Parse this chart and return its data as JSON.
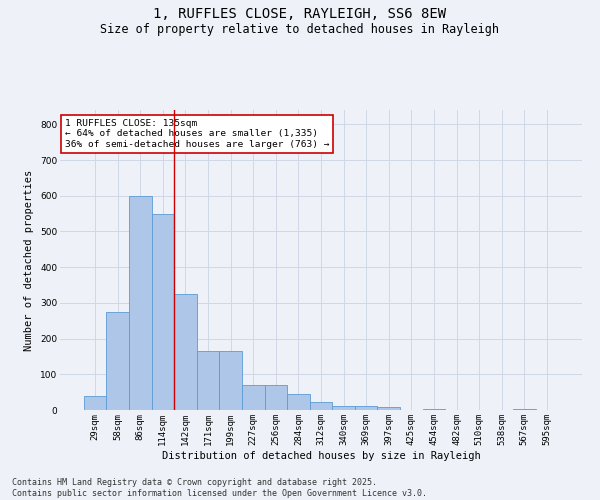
{
  "title": "1, RUFFLES CLOSE, RAYLEIGH, SS6 8EW",
  "subtitle": "Size of property relative to detached houses in Rayleigh",
  "xlabel": "Distribution of detached houses by size in Rayleigh",
  "ylabel": "Number of detached properties",
  "categories": [
    "29sqm",
    "58sqm",
    "86sqm",
    "114sqm",
    "142sqm",
    "171sqm",
    "199sqm",
    "227sqm",
    "256sqm",
    "284sqm",
    "312sqm",
    "340sqm",
    "369sqm",
    "397sqm",
    "425sqm",
    "454sqm",
    "482sqm",
    "510sqm",
    "538sqm",
    "567sqm",
    "595sqm"
  ],
  "values": [
    38,
    275,
    600,
    550,
    325,
    165,
    165,
    70,
    70,
    45,
    22,
    12,
    10,
    8,
    0,
    3,
    0,
    0,
    0,
    4,
    0
  ],
  "bar_color": "#aec6e8",
  "bar_edge_color": "#5b9bd5",
  "grid_color": "#d0d8e8",
  "background_color": "#eef2f8",
  "vline_color": "#cc0000",
  "vline_pos": 3.5,
  "annotation_title": "1 RUFFLES CLOSE: 135sqm",
  "annotation_line1": "← 64% of detached houses are smaller (1,335)",
  "annotation_line2": "36% of semi-detached houses are larger (763) →",
  "annotation_box_color": "#cc0000",
  "annotation_box_fill": "#ffffff",
  "footer_line1": "Contains HM Land Registry data © Crown copyright and database right 2025.",
  "footer_line2": "Contains public sector information licensed under the Open Government Licence v3.0.",
  "ylim": [
    0,
    840
  ],
  "yticks": [
    0,
    100,
    200,
    300,
    400,
    500,
    600,
    700,
    800
  ],
  "title_fontsize": 10,
  "subtitle_fontsize": 8.5,
  "axis_label_fontsize": 7.5,
  "tick_fontsize": 6.5,
  "annotation_fontsize": 6.8,
  "footer_fontsize": 6.0
}
